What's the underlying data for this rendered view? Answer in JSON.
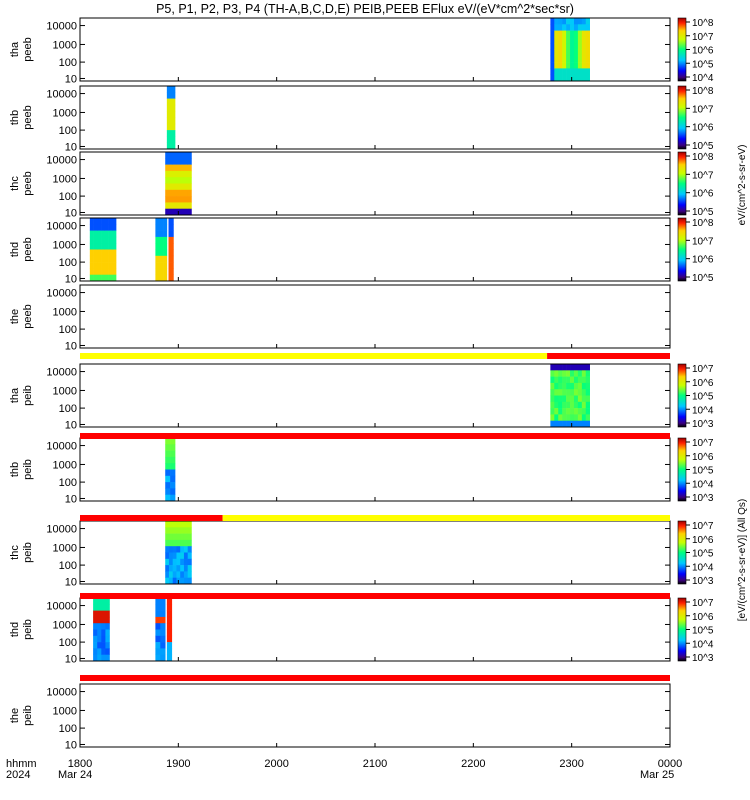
{
  "chart_data": {
    "type": "heatmap",
    "title": "P5, P1, P2, P3, P4 (TH-A,B,C,D,E) PEIB,PEEB EFlux eV/(eV*cm^2*sec*sr)",
    "time_range": [
      "1800",
      "0000"
    ],
    "x_ticks": [
      "1800",
      "1900",
      "2000",
      "2100",
      "2200",
      "2300",
      "0000"
    ],
    "x_start_label": {
      "hhmm": "hhmm",
      "year": "2024",
      "date": "Mar 24"
    },
    "x_end_label": "Mar 25",
    "y_ticks": [
      "10000",
      "1000",
      "100",
      "10"
    ],
    "yscale": "log",
    "colorbar_labels": {
      "peeb": "eV/(cm^2-s-sr-eV)",
      "peib": "[eV/(cm^2-s-sr-eV)] (All Qs)"
    },
    "panels": [
      {
        "label1": "tha",
        "label2": "peeb",
        "kind": "electron",
        "has_data": true,
        "blocks": [
          {
            "start": "2247",
            "end": "2311",
            "pattern": "tha_e"
          }
        ],
        "colorbar": {
          "ticks": [
            "10^8",
            "10^7",
            "10^6",
            "10^5",
            "10^4"
          ]
        }
      },
      {
        "label1": "thb",
        "label2": "peeb",
        "kind": "electron",
        "has_data": true,
        "blocks": [
          {
            "start": "1853",
            "end": "1858",
            "pattern": "thb_e"
          }
        ],
        "colorbar": {
          "ticks": [
            "10^8",
            "10^7",
            "10^6",
            "10^5"
          ]
        }
      },
      {
        "label1": "thc",
        "label2": "peeb",
        "kind": "electron",
        "has_data": true,
        "blocks": [
          {
            "start": "1852",
            "end": "1908",
            "pattern": "thc_e"
          }
        ],
        "colorbar": {
          "ticks": [
            "10^8",
            "10^7",
            "10^6",
            "10^5"
          ]
        }
      },
      {
        "label1": "thd",
        "label2": "peeb",
        "kind": "electron",
        "has_data": true,
        "blocks": [
          {
            "start": "1806",
            "end": "1822",
            "pattern": "thd_e1"
          },
          {
            "start": "1846",
            "end": "1853",
            "pattern": "thd_e2"
          },
          {
            "start": "1854",
            "end": "1857",
            "pattern": "thd_e3"
          }
        ],
        "colorbar": {
          "ticks": [
            "10^8",
            "10^7",
            "10^6",
            "10^5"
          ]
        }
      },
      {
        "label1": "the",
        "label2": "peeb",
        "kind": "electron",
        "has_data": false,
        "blocks": [],
        "colorbar": null
      },
      {
        "label1": "tha",
        "label2": "peib",
        "kind": "ion",
        "has_data": true,
        "blocks": [
          {
            "start": "2247",
            "end": "2311",
            "pattern": "tha_i"
          }
        ],
        "colorbar": {
          "ticks": [
            "10^7",
            "10^6",
            "10^5",
            "10^4",
            "10^3"
          ]
        }
      },
      {
        "label1": "thb",
        "label2": "peib",
        "kind": "ion",
        "has_data": true,
        "blocks": [
          {
            "start": "1852",
            "end": "1858",
            "pattern": "thb_i"
          }
        ],
        "colorbar": {
          "ticks": [
            "10^7",
            "10^6",
            "10^5",
            "10^4",
            "10^3"
          ]
        }
      },
      {
        "label1": "thc",
        "label2": "peib",
        "kind": "ion",
        "has_data": true,
        "blocks": [
          {
            "start": "1852",
            "end": "1908",
            "pattern": "thc_i"
          }
        ],
        "colorbar": {
          "ticks": [
            "10^7",
            "10^6",
            "10^5",
            "10^4",
            "10^3"
          ]
        }
      },
      {
        "label1": "thd",
        "label2": "peib",
        "kind": "ion",
        "has_data": true,
        "blocks": [
          {
            "start": "1808",
            "end": "1818",
            "pattern": "thd_i1"
          },
          {
            "start": "1846",
            "end": "1852",
            "pattern": "thd_i2"
          },
          {
            "start": "1853",
            "end": "1856",
            "pattern": "thd_i3"
          }
        ],
        "colorbar": {
          "ticks": [
            "10^7",
            "10^6",
            "10^5",
            "10^4",
            "10^3"
          ]
        }
      },
      {
        "label1": "the",
        "label2": "peib",
        "kind": "ion",
        "has_data": false,
        "blocks": [],
        "colorbar": null
      }
    ],
    "status_bars": [
      {
        "after_panel": 4,
        "segments": [
          {
            "start": "1800",
            "end": "2245",
            "color": "#ffff00"
          },
          {
            "start": "2245",
            "end": "0000",
            "color": "#ff0000"
          }
        ]
      },
      {
        "after_panel": 5,
        "segments": [
          {
            "start": "1800",
            "end": "0000",
            "color": "#ff0000"
          }
        ]
      },
      {
        "after_panel": 6,
        "segments": [
          {
            "start": "1800",
            "end": "1927",
            "color": "#ff0000"
          },
          {
            "start": "1927",
            "end": "0000",
            "color": "#ffff00"
          }
        ]
      },
      {
        "after_panel": 7,
        "segments": [
          {
            "start": "1800",
            "end": "0000",
            "color": "#ff0000"
          }
        ]
      },
      {
        "after_panel": 8,
        "segments": [
          {
            "start": "1800",
            "end": "0000",
            "color": "#ff0000"
          }
        ]
      }
    ]
  }
}
